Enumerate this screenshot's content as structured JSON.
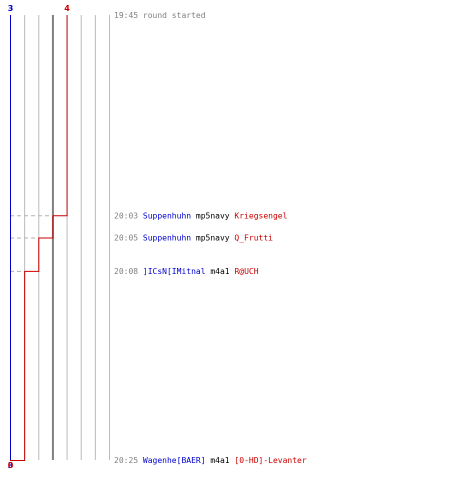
{
  "chart_data": {
    "type": "line",
    "title": "",
    "x_axis": {
      "min": 0,
      "max": 7,
      "gridline_every": 1
    },
    "team_colors": {
      "blue": "#0000cc",
      "red": "#cc0000",
      "time": "#808080",
      "weapon": "#000000",
      "grid": "#bbbbbb",
      "guide": "#b0b0b0",
      "center": "#808080"
    },
    "y_timeline": {
      "start": "19:45",
      "end": "20:25"
    },
    "start_event": {
      "time": "19:45",
      "text": "round started"
    },
    "team_counts": {
      "blue_top": "3",
      "red_top": "4",
      "blue_bottom": "3",
      "red_bottom": "0"
    },
    "events": [
      {
        "time": "20:03",
        "killer": "Suppenhuhn",
        "killer_team": "blue",
        "weapon": "mp5navy",
        "victim": "Kriegsengel",
        "victim_team": "red",
        "red_remaining": 3
      },
      {
        "time": "20:05",
        "killer": "Suppenhuhn",
        "killer_team": "blue",
        "weapon": "mp5navy",
        "victim": "Q_Frutti",
        "victim_team": "red",
        "red_remaining": 2
      },
      {
        "time": "20:08",
        "killer": "]ICsN[IMitnal",
        "killer_team": "blue",
        "weapon": "m4a1",
        "victim": "R@UCH",
        "victim_team": "red",
        "red_remaining": 1
      },
      {
        "time": "20:25",
        "killer": "Wagenhe[BAER]",
        "killer_team": "blue",
        "weapon": "m4a1",
        "victim": "[0-HD]-Levanter",
        "victim_team": "red",
        "red_remaining": 0
      }
    ],
    "red_series": {
      "name": "",
      "start": 4,
      "values": [
        4,
        3,
        2,
        1,
        0
      ]
    },
    "blue_series": {
      "name": "",
      "start": 3,
      "values": [
        3,
        3,
        3,
        3,
        3
      ]
    }
  }
}
